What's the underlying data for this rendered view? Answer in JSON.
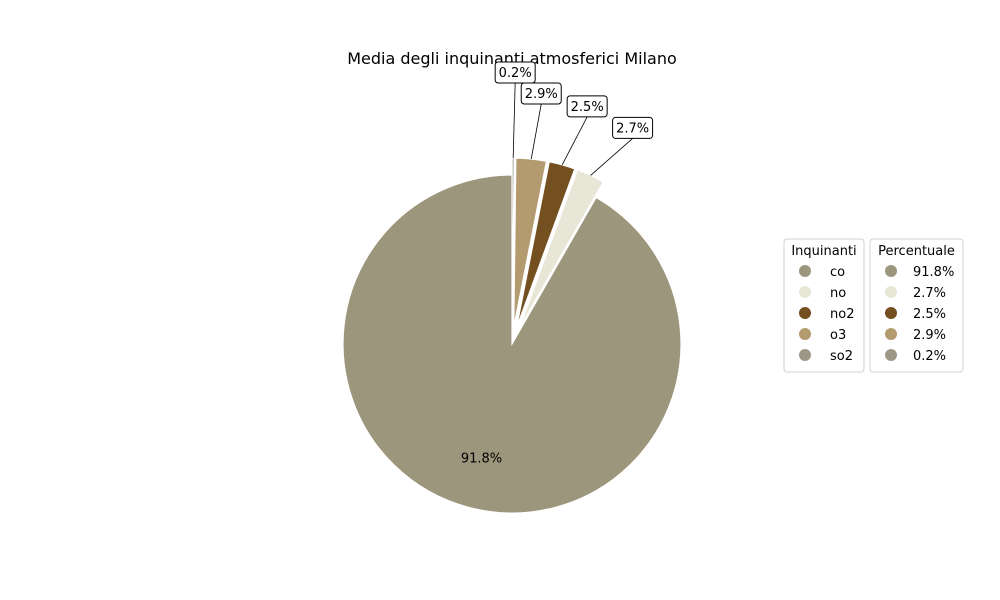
{
  "chart_data": {
    "type": "pie",
    "title": "Media degli inquinanti atmosferici Milano",
    "slices": [
      {
        "label": "co",
        "value": 91.8,
        "pct_label": "91.8%",
        "color": "#9c967c",
        "exploded": false
      },
      {
        "label": "no",
        "value": 2.7,
        "pct_label": "2.7%",
        "color": "#e8e6d6",
        "exploded": true
      },
      {
        "label": "no2",
        "value": 2.5,
        "pct_label": "2.5%",
        "color": "#744f1f",
        "exploded": true
      },
      {
        "label": "o3",
        "value": 2.9,
        "pct_label": "2.9%",
        "color": "#b49a6f",
        "exploded": true
      },
      {
        "label": "so2",
        "value": 0.2,
        "pct_label": "0.2%",
        "color": "#9c9888",
        "exploded": true
      }
    ],
    "legends": [
      {
        "title": "Inquinanti",
        "entries": [
          "co",
          "no",
          "no2",
          "o3",
          "so2"
        ]
      },
      {
        "title": "Percentuale",
        "entries": [
          "91.8%",
          "2.7%",
          "2.5%",
          "2.9%",
          "0.2%"
        ]
      }
    ],
    "legend_placement": "right"
  }
}
